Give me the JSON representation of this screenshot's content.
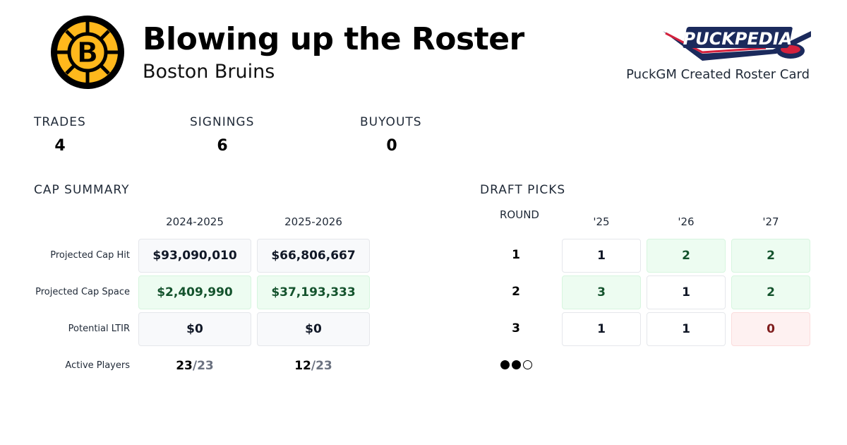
{
  "header": {
    "title": "Blowing up the Roster",
    "team": "Boston Bruins",
    "team_logo_text": "B",
    "brand_logo_text": "PuckPedia",
    "credit": "PuckGM Created Roster Card"
  },
  "stats": [
    {
      "label": "TRADES",
      "value": "4"
    },
    {
      "label": "SIGNINGS",
      "value": "6"
    },
    {
      "label": "BUYOUTS",
      "value": "0"
    }
  ],
  "cap_summary": {
    "title": "CAP SUMMARY",
    "seasons": [
      "2024-2025",
      "2025-2026"
    ],
    "rows": [
      {
        "label": "Projected Cap Hit",
        "values": [
          "$93,090,010",
          "$66,806,667"
        ],
        "tone": "neutral"
      },
      {
        "label": "Projected Cap Space",
        "values": [
          "$2,409,990",
          "$37,193,333"
        ],
        "tone": "green"
      },
      {
        "label": "Potential LTIR",
        "values": [
          "$0",
          "$0"
        ],
        "tone": "neutral"
      }
    ],
    "active_players": {
      "label": "Active Players",
      "values": [
        {
          "count": "23",
          "max": "/23"
        },
        {
          "count": "12",
          "max": "/23"
        }
      ]
    }
  },
  "draft_picks": {
    "title": "DRAFT PICKS",
    "round_label": "ROUND",
    "years": [
      "'25",
      "'26",
      "'27"
    ],
    "rounds": [
      {
        "round": "1",
        "picks": [
          "1",
          "2",
          "2"
        ],
        "tones": [
          "white",
          "green",
          "green"
        ]
      },
      {
        "round": "2",
        "picks": [
          "3",
          "1",
          "2"
        ],
        "tones": [
          "green",
          "white",
          "green"
        ]
      },
      {
        "round": "3",
        "picks": [
          "1",
          "1",
          "0"
        ],
        "tones": [
          "white",
          "white",
          "red"
        ]
      }
    ],
    "pagination": {
      "total": 3,
      "filled": 2
    }
  },
  "colors": {
    "bruins_gold": "#FFB81C",
    "green_text": "#14532d",
    "red_text": "#7f1d1d",
    "brand_navy": "#1b2a5c",
    "brand_red": "#d4213d"
  }
}
